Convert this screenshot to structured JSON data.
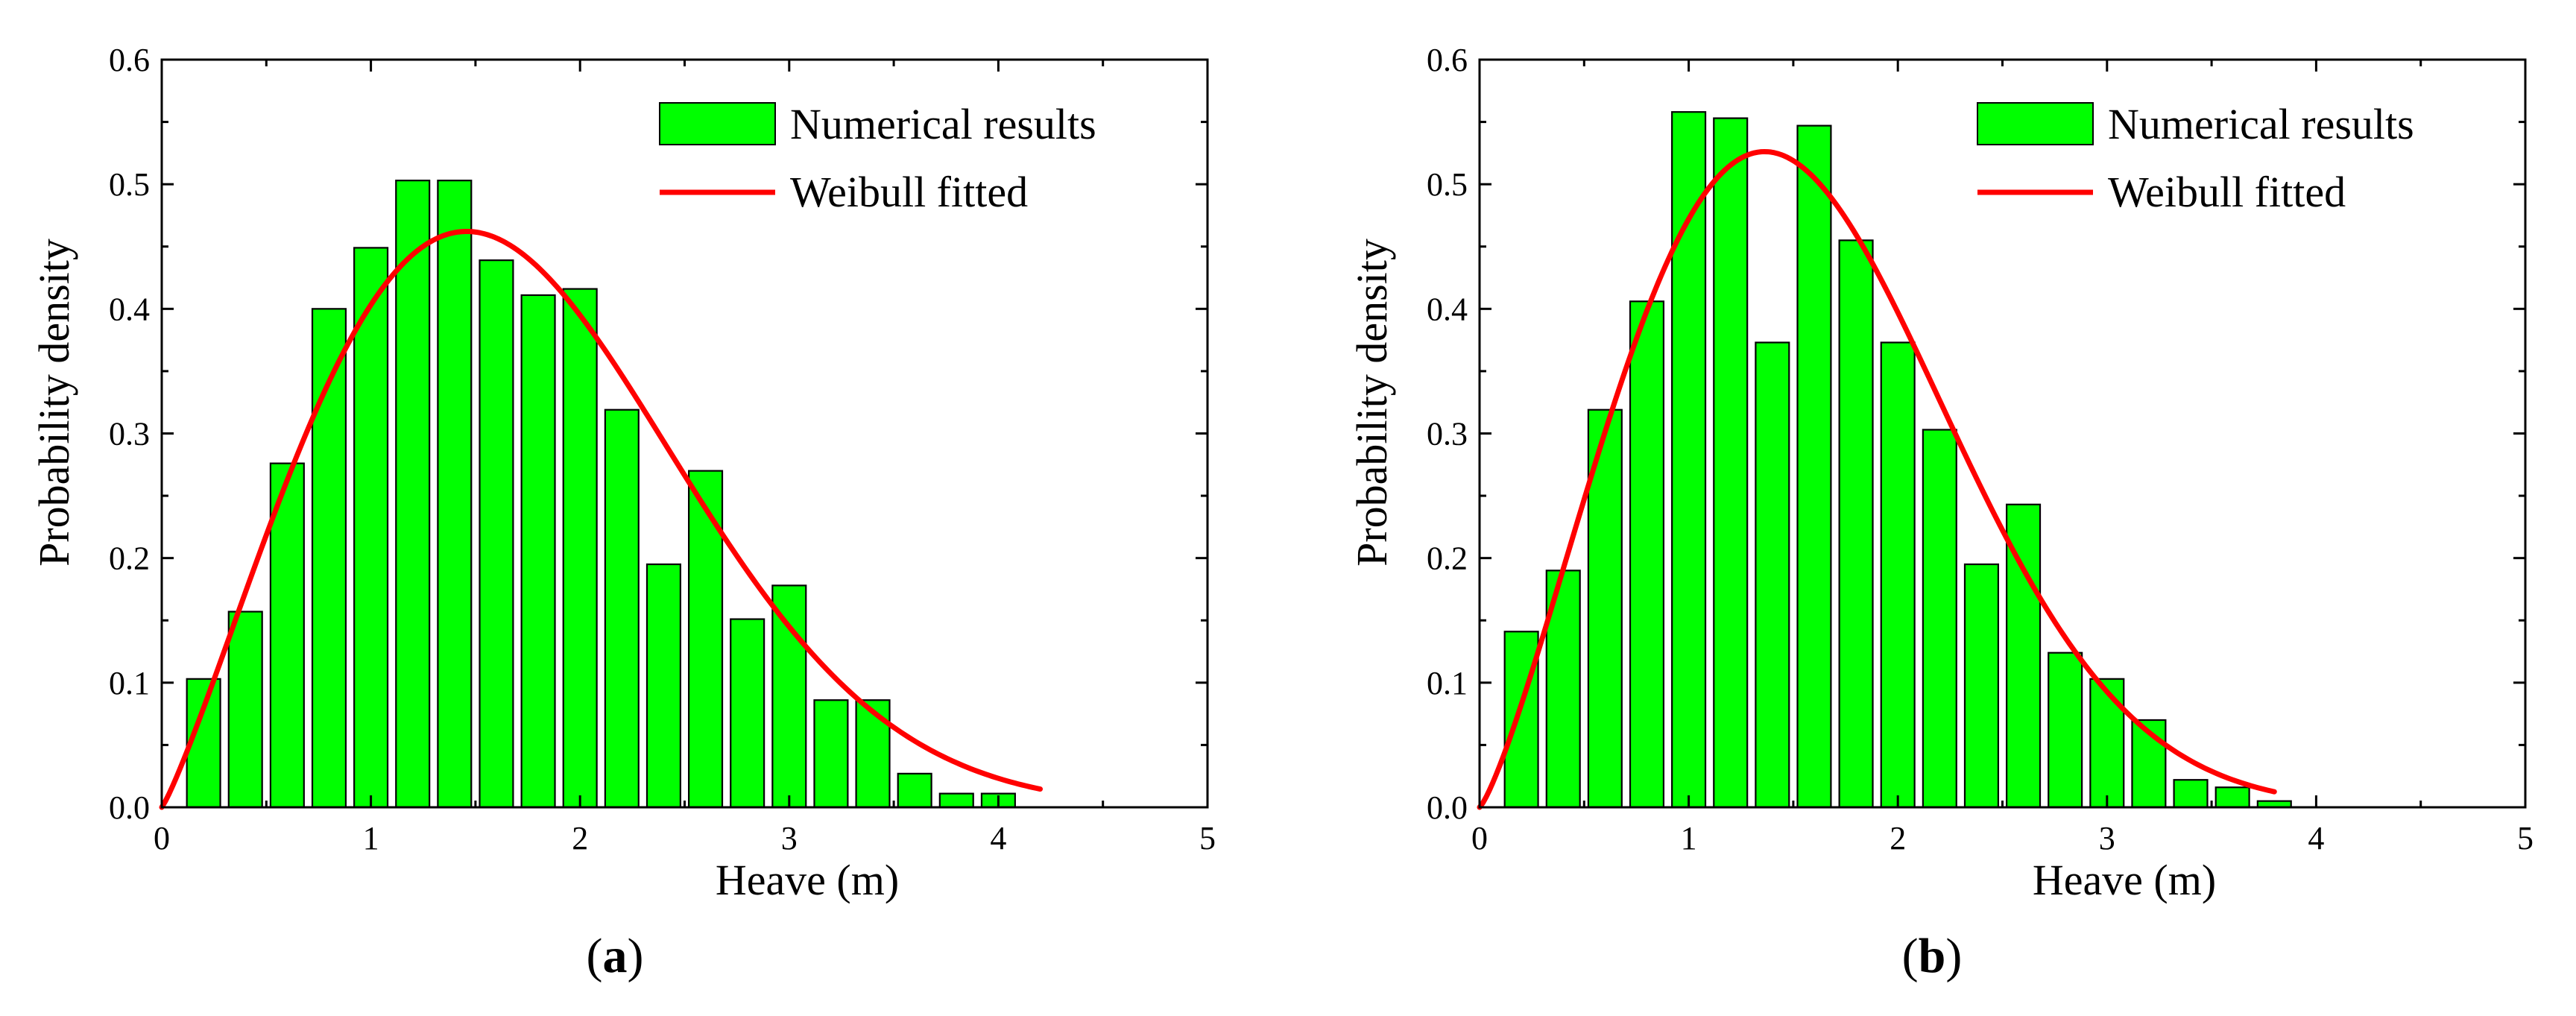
{
  "colors": {
    "bar_fill": "#00ff00",
    "bar_stroke": "#000000",
    "fit_line": "#ff0000",
    "axis": "#000000",
    "background": "#ffffff"
  },
  "chart_data": [
    {
      "panel": "a",
      "panel_label": {
        "open": "(",
        "letter": "a",
        "close": ")"
      },
      "type": "bar",
      "xlabel": "Heave (m)",
      "ylabel": "Probability density",
      "xlim": [
        0,
        5
      ],
      "ylim": [
        0,
        0.6
      ],
      "xticks": [
        "0",
        "1",
        "2",
        "3",
        "4",
        "5"
      ],
      "yticks": [
        "0.0",
        "0.1",
        "0.2",
        "0.3",
        "0.4",
        "0.5",
        "0.6"
      ],
      "bar_width": 0.16,
      "series": [
        {
          "name": "Numerical results",
          "kind": "bar",
          "x": [
            0.2,
            0.4,
            0.6,
            0.8,
            1.0,
            1.2,
            1.4,
            1.6,
            1.8,
            2.0,
            2.2,
            2.4,
            2.6,
            2.8,
            3.0,
            3.2,
            3.4,
            3.6,
            3.8,
            4.0
          ],
          "values": [
            0.103,
            0.157,
            0.276,
            0.4,
            0.449,
            0.503,
            0.503,
            0.439,
            0.411,
            0.416,
            0.319,
            0.195,
            0.27,
            0.151,
            0.178,
            0.086,
            0.086,
            0.027,
            0.011,
            0.011
          ]
        },
        {
          "name": "Weibull fitted",
          "kind": "line",
          "weibull_shape": 2.15,
          "weibull_scale": 1.95,
          "x_range": [
            0,
            4.2
          ]
        }
      ]
    },
    {
      "panel": "b",
      "panel_label": {
        "open": "(",
        "letter": "b",
        "close": ")"
      },
      "type": "bar",
      "xlabel": "Heave (m)",
      "ylabel": "Probability density",
      "xlim": [
        0,
        5
      ],
      "ylim": [
        0,
        0.6
      ],
      "xticks": [
        "0",
        "1",
        "2",
        "3",
        "4",
        "5"
      ],
      "yticks": [
        "0.0",
        "0.1",
        "0.2",
        "0.3",
        "0.4",
        "0.5",
        "0.6"
      ],
      "bar_width": 0.16,
      "series": [
        {
          "name": "Numerical results",
          "kind": "bar",
          "x": [
            0.2,
            0.4,
            0.6,
            0.8,
            1.0,
            1.2,
            1.4,
            1.6,
            1.8,
            2.0,
            2.2,
            2.4,
            2.6,
            2.8,
            3.0,
            3.2,
            3.4,
            3.6,
            3.8
          ],
          "values": [
            0.141,
            0.19,
            0.319,
            0.406,
            0.558,
            0.553,
            0.373,
            0.547,
            0.455,
            0.373,
            0.303,
            0.195,
            0.243,
            0.124,
            0.103,
            0.07,
            0.022,
            0.016,
            0.005
          ]
        },
        {
          "name": "Weibull fitted",
          "kind": "line",
          "weibull_shape": 2.25,
          "weibull_scale": 1.77,
          "x_range": [
            0,
            3.8
          ]
        }
      ]
    }
  ]
}
